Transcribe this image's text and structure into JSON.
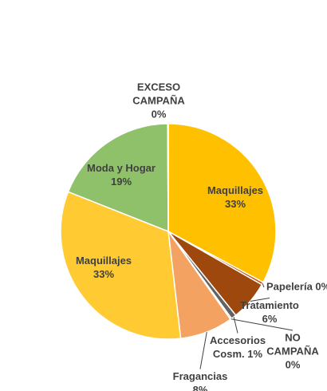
{
  "chart_data": {
    "type": "pie",
    "slices": [
      {
        "name": "Maquillajes",
        "pct_label": "33%",
        "value": 33,
        "color": "#FFC000"
      },
      {
        "name": "Papelería",
        "pct_label": "0%",
        "value": 0.4,
        "color": "#C55A11"
      },
      {
        "name": "Tratamiento",
        "pct_label": "6%",
        "value": 6,
        "color": "#9E480E"
      },
      {
        "name": "Accesorios Cosm.",
        "pct_label": "1%",
        "value": 0.8,
        "color": "#636363"
      },
      {
        "name": "NO CAMPAÑA",
        "pct_label": "0%",
        "value": 0.2,
        "color": "#997300"
      },
      {
        "name": "Fragancias",
        "pct_label": "8%",
        "value": 8,
        "color": "#F4A261"
      },
      {
        "name": "Maquillajes",
        "pct_label": "33%",
        "value": 33,
        "color": "#FFCA32"
      },
      {
        "name": "Moda y Hogar",
        "pct_label": "19%",
        "value": 19,
        "color": "#8FC16A"
      },
      {
        "name": "EXCESO CAMPAÑA",
        "pct_label": "0%",
        "value": 0.1,
        "color": "#70AD47"
      }
    ],
    "legend": "none"
  }
}
